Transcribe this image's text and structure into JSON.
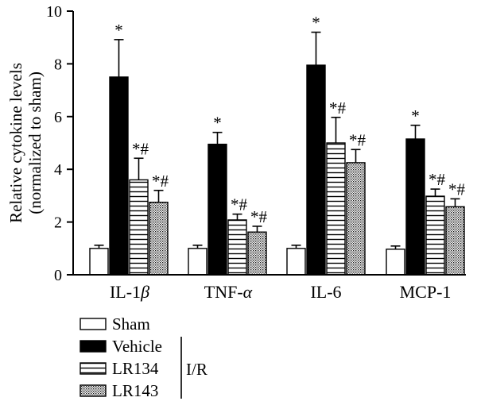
{
  "chart_data": {
    "type": "bar",
    "ylabel_line1": "Relative cytokine levels",
    "ylabel_line2": "(normalized to sham)",
    "ylim": [
      0,
      10
    ],
    "yticks": [
      "0",
      "2",
      "4",
      "6",
      "8",
      "10"
    ],
    "categories": [
      {
        "base": "IL-1",
        "greek": "β"
      },
      {
        "base": "TNF-",
        "greek": "α"
      },
      {
        "base": "IL-6",
        "greek": ""
      },
      {
        "base": "MCP-1",
        "greek": ""
      }
    ],
    "series": [
      {
        "name": "Sham",
        "fill": "white",
        "values": [
          1.0,
          1.0,
          1.0,
          0.97
        ],
        "errors": [
          0.12,
          0.12,
          0.12,
          0.12
        ],
        "marks": [
          "",
          "",
          "",
          ""
        ]
      },
      {
        "name": "Vehicle",
        "fill": "black",
        "values": [
          7.5,
          4.95,
          7.95,
          5.15
        ],
        "errors": [
          1.42,
          0.45,
          1.25,
          0.52
        ],
        "marks": [
          "*",
          "*",
          "*",
          "*"
        ]
      },
      {
        "name": "LR134",
        "fill": "hlines",
        "values": [
          3.6,
          2.08,
          5.0,
          2.98
        ],
        "errors": [
          0.82,
          0.22,
          0.97,
          0.27
        ],
        "marks": [
          "*#",
          "*#",
          "*#",
          "*#"
        ]
      },
      {
        "name": "LR143",
        "fill": "dots",
        "values": [
          2.75,
          1.62,
          4.25,
          2.58
        ],
        "errors": [
          0.45,
          0.22,
          0.5,
          0.3
        ],
        "marks": [
          "*#",
          "*#",
          "*#",
          "*#"
        ]
      }
    ],
    "group_label": "I/R",
    "legend_position": "bottom-left"
  }
}
